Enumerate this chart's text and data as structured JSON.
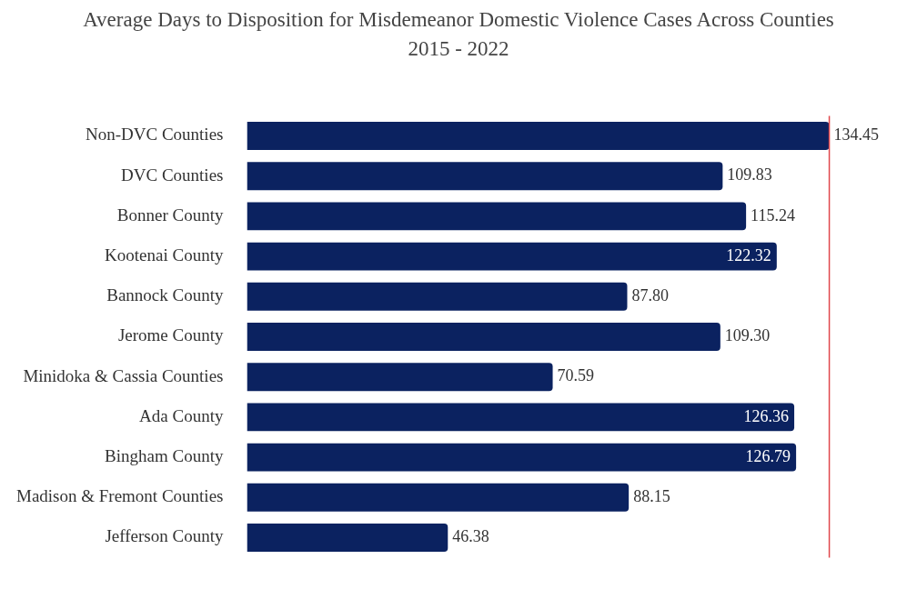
{
  "chart_data": {
    "type": "bar",
    "orientation": "horizontal",
    "title": "Average Days to Disposition for Misdemeanor Domestic Violence Cases Across Counties 2015 - 2022",
    "categories": [
      "Non-DVC Counties",
      "DVC Counties",
      "Bonner County",
      "Kootenai County",
      "Bannock County",
      "Jerome County",
      "Minidoka & Cassia Counties",
      "Ada County",
      "Bingham County",
      "Madison & Fremont Counties",
      "Jefferson County"
    ],
    "values": [
      134.45,
      109.83,
      115.24,
      122.32,
      87.8,
      109.3,
      70.59,
      126.36,
      126.79,
      88.15,
      46.38
    ],
    "value_labels": [
      "134.45",
      "109.83",
      "115.24",
      "122.32",
      "87.80",
      "109.30",
      "70.59",
      "126.36",
      "126.79",
      "88.15",
      "46.38"
    ],
    "color": "#0b2260",
    "tick_labels": "y",
    "legend": false,
    "ref_lines": [
      {
        "axis": "x",
        "value": 134.45,
        "color": "#e0474c"
      }
    ]
  }
}
